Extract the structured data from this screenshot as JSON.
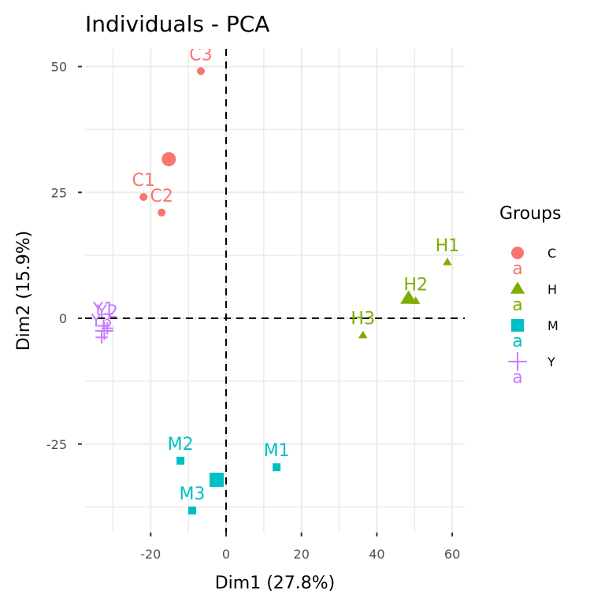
{
  "chart_data": {
    "type": "scatter",
    "title": "Individuals - PCA",
    "xlabel": "Dim1 (27.8%)",
    "ylabel": "Dim2 (15.9%)",
    "xlim": [
      -37.5,
      63.5
    ],
    "ylim": [
      -42,
      53
    ],
    "x_ticks": [
      -20,
      0,
      20,
      40,
      60
    ],
    "x_tick_labels": [
      "-20",
      "0",
      "20",
      "40",
      "60"
    ],
    "y_ticks": [
      -25,
      0,
      25,
      50
    ],
    "y_tick_labels": [
      "-25",
      "0",
      "25",
      "50"
    ],
    "x_minor_gridlines": [
      -30,
      -10,
      10,
      30,
      50
    ],
    "y_minor_gridlines": [
      -37.5,
      -12.5,
      12.5,
      37.5
    ],
    "grid": true,
    "reference_lines": {
      "x": 0,
      "y": 0,
      "style": "dashed"
    },
    "legend": {
      "title": "Groups",
      "placement": "right",
      "entries": [
        {
          "label": "C",
          "shape": "circle",
          "color": "#F8766D"
        },
        {
          "label": "H",
          "shape": "triangle",
          "color": "#7CAE00"
        },
        {
          "label": "M",
          "shape": "square",
          "color": "#00BFC4"
        },
        {
          "label": "Y",
          "shape": "cross",
          "color": "#C77CFF"
        }
      ],
      "text_key_glyph": "a"
    },
    "series": [
      {
        "name": "C",
        "shape": "circle",
        "color": "#F8766D",
        "points": [
          {
            "label": "C1",
            "x": -21.9,
            "y": 24.1
          },
          {
            "label": "C2",
            "x": -17.1,
            "y": 21.0
          },
          {
            "label": "C3",
            "x": -6.7,
            "y": 49.1
          }
        ],
        "centroid": {
          "x": -15.2,
          "y": 31.6
        }
      },
      {
        "name": "H",
        "shape": "triangle",
        "color": "#7CAE00",
        "points": [
          {
            "label": "H1",
            "x": 58.7,
            "y": 11.1
          },
          {
            "label": "H2",
            "x": 50.3,
            "y": 3.4
          },
          {
            "label": "H3",
            "x": 36.3,
            "y": -3.4
          }
        ],
        "centroid": {
          "x": 48.4,
          "y": 3.9
        }
      },
      {
        "name": "M",
        "shape": "square",
        "color": "#00BFC4",
        "points": [
          {
            "label": "M1",
            "x": 13.4,
            "y": -29.6
          },
          {
            "label": "M2",
            "x": -12.1,
            "y": -28.3
          },
          {
            "label": "M3",
            "x": -9.0,
            "y": -38.2
          }
        ],
        "centroid": {
          "x": -2.5,
          "y": -32.1
        }
      },
      {
        "name": "Y",
        "shape": "cross",
        "color": "#C77CFF",
        "points": [
          {
            "label": "Y1",
            "x": -32.5,
            "y": -1.5
          },
          {
            "label": "Y2",
            "x": -31.5,
            "y": -2.0
          },
          {
            "label": "Y3",
            "x": -33.0,
            "y": -3.8
          }
        ],
        "centroid": {
          "x": -32.3,
          "y": -2.5
        }
      }
    ]
  }
}
